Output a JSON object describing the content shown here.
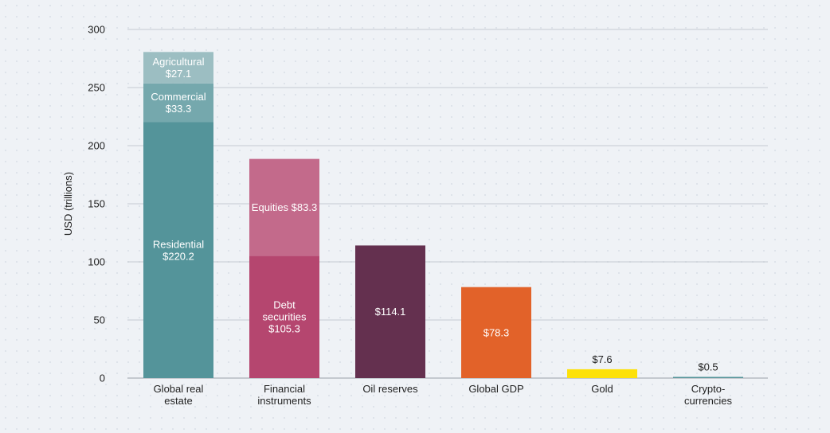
{
  "chart_data": {
    "type": "bar",
    "stacked": true,
    "title": "",
    "xlabel": "",
    "ylabel": "USD (trillions)",
    "ylim": [
      0,
      300
    ],
    "yticks": [
      0,
      50,
      100,
      150,
      200,
      250,
      300
    ],
    "grid": true,
    "legend": "none",
    "categories": [
      {
        "lines": [
          "Global real",
          "estate"
        ]
      },
      {
        "lines": [
          "Financial",
          "instruments"
        ]
      },
      {
        "lines": [
          "Oil reserves"
        ]
      },
      {
        "lines": [
          "Global GDP"
        ]
      },
      {
        "lines": [
          "Gold"
        ]
      },
      {
        "lines": [
          "Crypto-",
          "currencies"
        ]
      }
    ],
    "stacks": [
      {
        "segments": [
          {
            "value": 220.2,
            "color": "#54949a",
            "label": [
              "Residential",
              "$220.2"
            ]
          },
          {
            "value": 33.3,
            "color": "#75a8ad",
            "label": [
              "Commercial",
              "$33.3"
            ]
          },
          {
            "value": 27.1,
            "color": "#9cbec2",
            "label": [
              "Agricultural",
              "$27.1"
            ]
          }
        ]
      },
      {
        "segments": [
          {
            "value": 105.3,
            "color": "#b5466f",
            "label": [
              "Debt",
              "securities",
              "$105.3"
            ]
          },
          {
            "value": 83.3,
            "color": "#c36a8b",
            "label": [
              "Equities $83.3"
            ]
          }
        ]
      },
      {
        "segments": [
          {
            "value": 114.1,
            "color": "#64304f",
            "label": [
              "$114.1"
            ]
          }
        ]
      },
      {
        "segments": [
          {
            "value": 78.3,
            "color": "#e26229",
            "label": [
              "$78.3"
            ]
          }
        ]
      },
      {
        "segments": [
          {
            "value": 7.6,
            "color": "#fde10a",
            "label": [
              "$7.6"
            ],
            "label_position": "above"
          }
        ]
      },
      {
        "segments": [
          {
            "value": 0.5,
            "color": "#54949a",
            "label": [
              "$0.5"
            ],
            "label_position": "above"
          }
        ]
      }
    ]
  }
}
